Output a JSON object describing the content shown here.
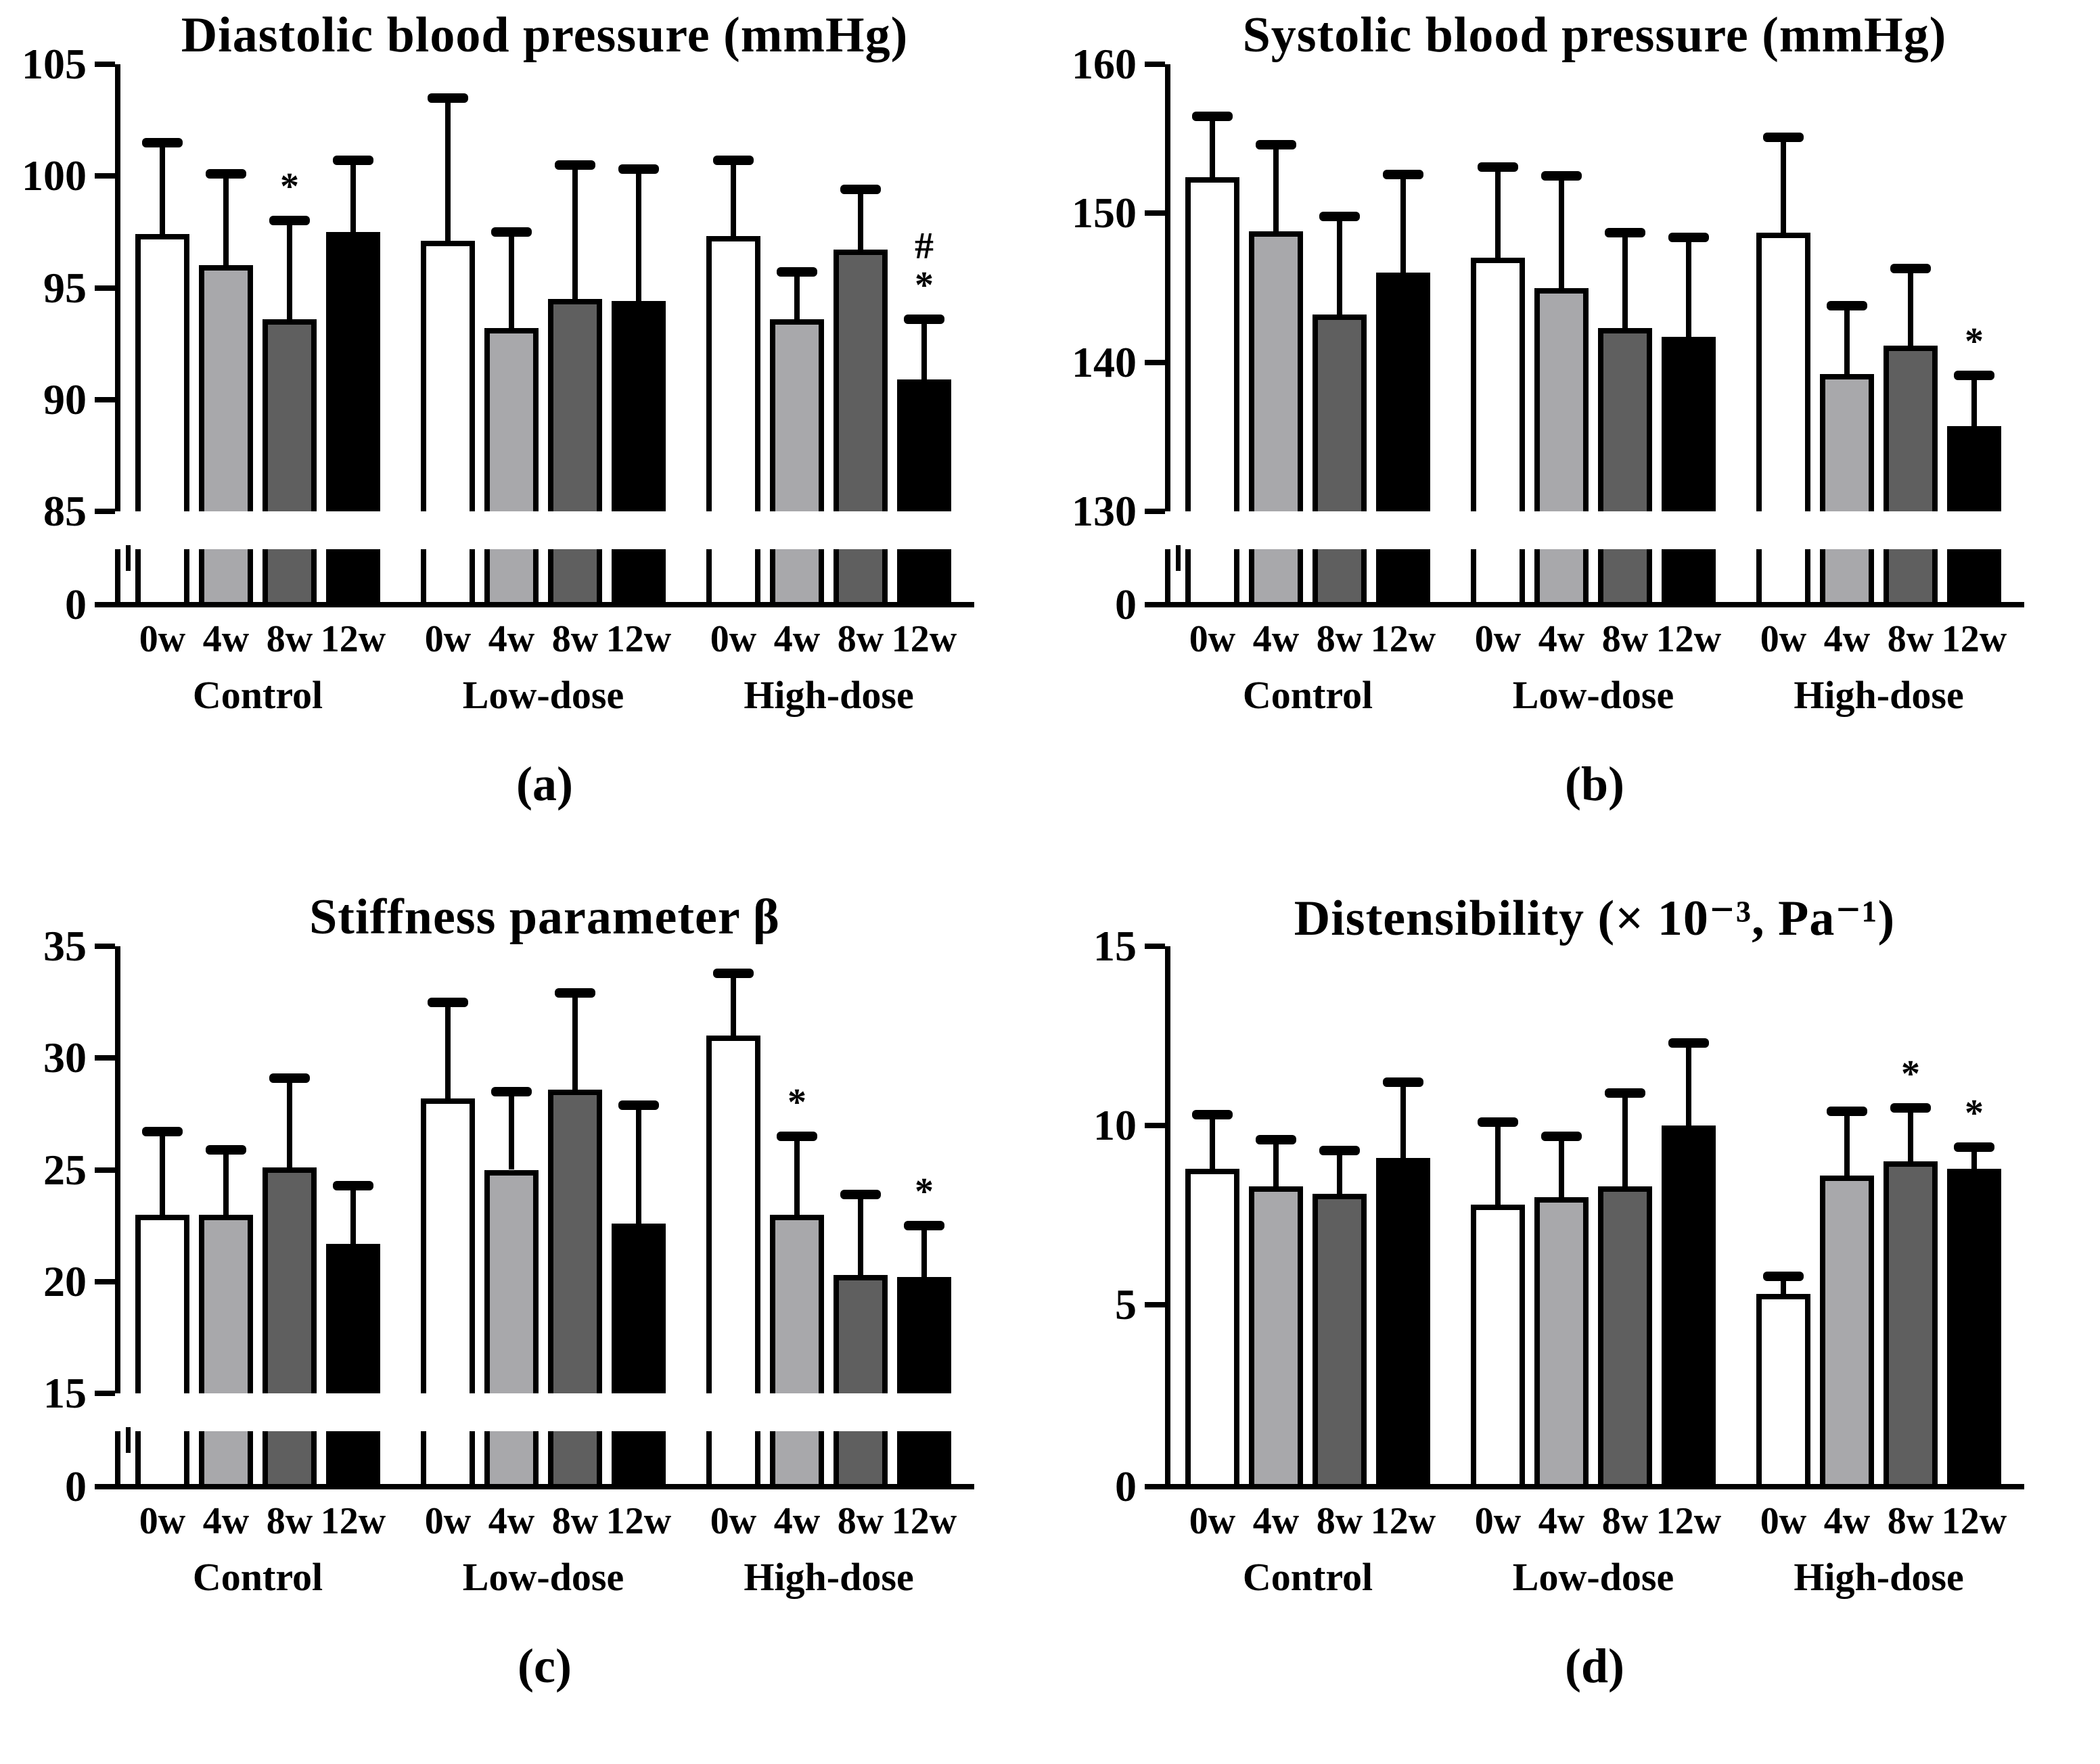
{
  "figure": {
    "panel_letters": [
      "(a)",
      "(b)",
      "(c)",
      "(d)"
    ],
    "bar_colors": [
      "#ffffff",
      "#a8a8ab",
      "#5f5f5f",
      "#000000"
    ],
    "week_labels": [
      "0w",
      "4w",
      "8w",
      "12w"
    ],
    "group_labels": [
      "Control",
      "Low-dose",
      "High-dose"
    ]
  },
  "chart_data": [
    {
      "type": "bar",
      "panel": "a",
      "letter": "(a)",
      "title": "Diastolic blood pressure (mmHg)",
      "axis_break": true,
      "ylim": [
        85,
        105
      ],
      "yticks": [
        105,
        100,
        95,
        90,
        85
      ],
      "zero_tick": "0",
      "legend_position": "none",
      "grid": false,
      "groups": [
        {
          "label": "Control",
          "bars": [
            {
              "week": "0w",
              "value": 97.4,
              "err_top": 101.5,
              "sig": []
            },
            {
              "week": "4w",
              "value": 96.0,
              "err_top": 100.1,
              "sig": []
            },
            {
              "week": "8w",
              "value": 93.6,
              "err_top": 98.0,
              "sig": [
                "*"
              ]
            },
            {
              "week": "12w",
              "value": 97.5,
              "err_top": 100.7,
              "sig": []
            }
          ]
        },
        {
          "label": "Low-dose",
          "bars": [
            {
              "week": "0w",
              "value": 97.1,
              "err_top": 103.5,
              "sig": []
            },
            {
              "week": "4w",
              "value": 93.2,
              "err_top": 97.5,
              "sig": []
            },
            {
              "week": "8w",
              "value": 94.5,
              "err_top": 100.5,
              "sig": []
            },
            {
              "week": "12w",
              "value": 94.4,
              "err_top": 100.3,
              "sig": []
            }
          ]
        },
        {
          "label": "High-dose",
          "bars": [
            {
              "week": "0w",
              "value": 97.3,
              "err_top": 100.7,
              "sig": []
            },
            {
              "week": "4w",
              "value": 93.6,
              "err_top": 95.7,
              "sig": []
            },
            {
              "week": "8w",
              "value": 96.7,
              "err_top": 99.4,
              "sig": []
            },
            {
              "week": "12w",
              "value": 90.9,
              "err_top": 93.6,
              "sig": [
                "#",
                "*"
              ]
            }
          ]
        }
      ]
    },
    {
      "type": "bar",
      "panel": "b",
      "letter": "(b)",
      "title": "Systolic blood pressure (mmHg)",
      "axis_break": true,
      "ylim": [
        130,
        160
      ],
      "yticks": [
        160,
        150,
        140,
        130
      ],
      "zero_tick": "0",
      "legend_position": "none",
      "grid": false,
      "groups": [
        {
          "label": "Control",
          "bars": [
            {
              "week": "0w",
              "value": 152.4,
              "err_top": 156.5,
              "sig": []
            },
            {
              "week": "4w",
              "value": 148.8,
              "err_top": 154.6,
              "sig": []
            },
            {
              "week": "8w",
              "value": 143.2,
              "err_top": 149.8,
              "sig": []
            },
            {
              "week": "12w",
              "value": 146.0,
              "err_top": 152.6,
              "sig": []
            }
          ]
        },
        {
          "label": "Low-dose",
          "bars": [
            {
              "week": "0w",
              "value": 147.0,
              "err_top": 153.1,
              "sig": []
            },
            {
              "week": "4w",
              "value": 145.0,
              "err_top": 152.5,
              "sig": []
            },
            {
              "week": "8w",
              "value": 142.3,
              "err_top": 148.7,
              "sig": []
            },
            {
              "week": "12w",
              "value": 141.7,
              "err_top": 148.4,
              "sig": []
            }
          ]
        },
        {
          "label": "High-dose",
          "bars": [
            {
              "week": "0w",
              "value": 148.7,
              "err_top": 155.1,
              "sig": []
            },
            {
              "week": "4w",
              "value": 139.2,
              "err_top": 143.8,
              "sig": []
            },
            {
              "week": "8w",
              "value": 141.1,
              "err_top": 146.3,
              "sig": []
            },
            {
              "week": "12w",
              "value": 135.7,
              "err_top": 139.1,
              "sig": [
                "*"
              ]
            }
          ]
        }
      ]
    },
    {
      "type": "bar",
      "panel": "c",
      "letter": "(c)",
      "title": "Stiffness parameter β",
      "axis_break": true,
      "ylim": [
        15,
        35
      ],
      "yticks": [
        35,
        30,
        25,
        20,
        15
      ],
      "zero_tick": "0",
      "legend_position": "none",
      "grid": false,
      "groups": [
        {
          "label": "Control",
          "bars": [
            {
              "week": "0w",
              "value": 23.0,
              "err_top": 26.7,
              "sig": []
            },
            {
              "week": "4w",
              "value": 23.0,
              "err_top": 25.9,
              "sig": []
            },
            {
              "week": "8w",
              "value": 25.1,
              "err_top": 29.1,
              "sig": []
            },
            {
              "week": "12w",
              "value": 21.7,
              "err_top": 24.3,
              "sig": []
            }
          ]
        },
        {
          "label": "Low-dose",
          "bars": [
            {
              "week": "0w",
              "value": 28.2,
              "err_top": 32.5,
              "sig": []
            },
            {
              "week": "4w",
              "value": 25.0,
              "err_top": 28.5,
              "sig": []
            },
            {
              "week": "8w",
              "value": 28.6,
              "err_top": 32.9,
              "sig": []
            },
            {
              "week": "12w",
              "value": 22.6,
              "err_top": 27.9,
              "sig": []
            }
          ]
        },
        {
          "label": "High-dose",
          "bars": [
            {
              "week": "0w",
              "value": 31.0,
              "err_top": 33.8,
              "sig": []
            },
            {
              "week": "4w",
              "value": 23.0,
              "err_top": 26.5,
              "sig": [
                "*"
              ]
            },
            {
              "week": "8w",
              "value": 20.3,
              "err_top": 23.9,
              "sig": []
            },
            {
              "week": "12w",
              "value": 20.2,
              "err_top": 22.5,
              "sig": [
                "*"
              ]
            }
          ]
        }
      ]
    },
    {
      "type": "bar",
      "panel": "d",
      "letter": "(d)",
      "title": "Distensibility (× 10⁻³, Pa⁻¹)",
      "axis_break": false,
      "ylim": [
        0,
        15
      ],
      "yticks": [
        15,
        10,
        5
      ],
      "zero_tick": "0",
      "legend_position": "none",
      "grid": false,
      "groups": [
        {
          "label": "Control",
          "bars": [
            {
              "week": "0w",
              "value": 8.8,
              "err_top": 10.3,
              "sig": []
            },
            {
              "week": "4w",
              "value": 8.3,
              "err_top": 9.6,
              "sig": []
            },
            {
              "week": "8w",
              "value": 8.1,
              "err_top": 9.3,
              "sig": []
            },
            {
              "week": "12w",
              "value": 9.1,
              "err_top": 11.2,
              "sig": []
            }
          ]
        },
        {
          "label": "Low-dose",
          "bars": [
            {
              "week": "0w",
              "value": 7.8,
              "err_top": 10.1,
              "sig": []
            },
            {
              "week": "4w",
              "value": 8.0,
              "err_top": 9.7,
              "sig": []
            },
            {
              "week": "8w",
              "value": 8.3,
              "err_top": 10.9,
              "sig": []
            },
            {
              "week": "12w",
              "value": 10.0,
              "err_top": 12.3,
              "sig": []
            }
          ]
        },
        {
          "label": "High-dose",
          "bars": [
            {
              "week": "0w",
              "value": 5.3,
              "err_top": 5.8,
              "sig": []
            },
            {
              "week": "4w",
              "value": 8.6,
              "err_top": 10.4,
              "sig": []
            },
            {
              "week": "8w",
              "value": 9.0,
              "err_top": 10.5,
              "sig": [
                "*"
              ]
            },
            {
              "week": "12w",
              "value": 8.8,
              "err_top": 9.4,
              "sig": [
                "*"
              ]
            }
          ]
        }
      ]
    }
  ]
}
